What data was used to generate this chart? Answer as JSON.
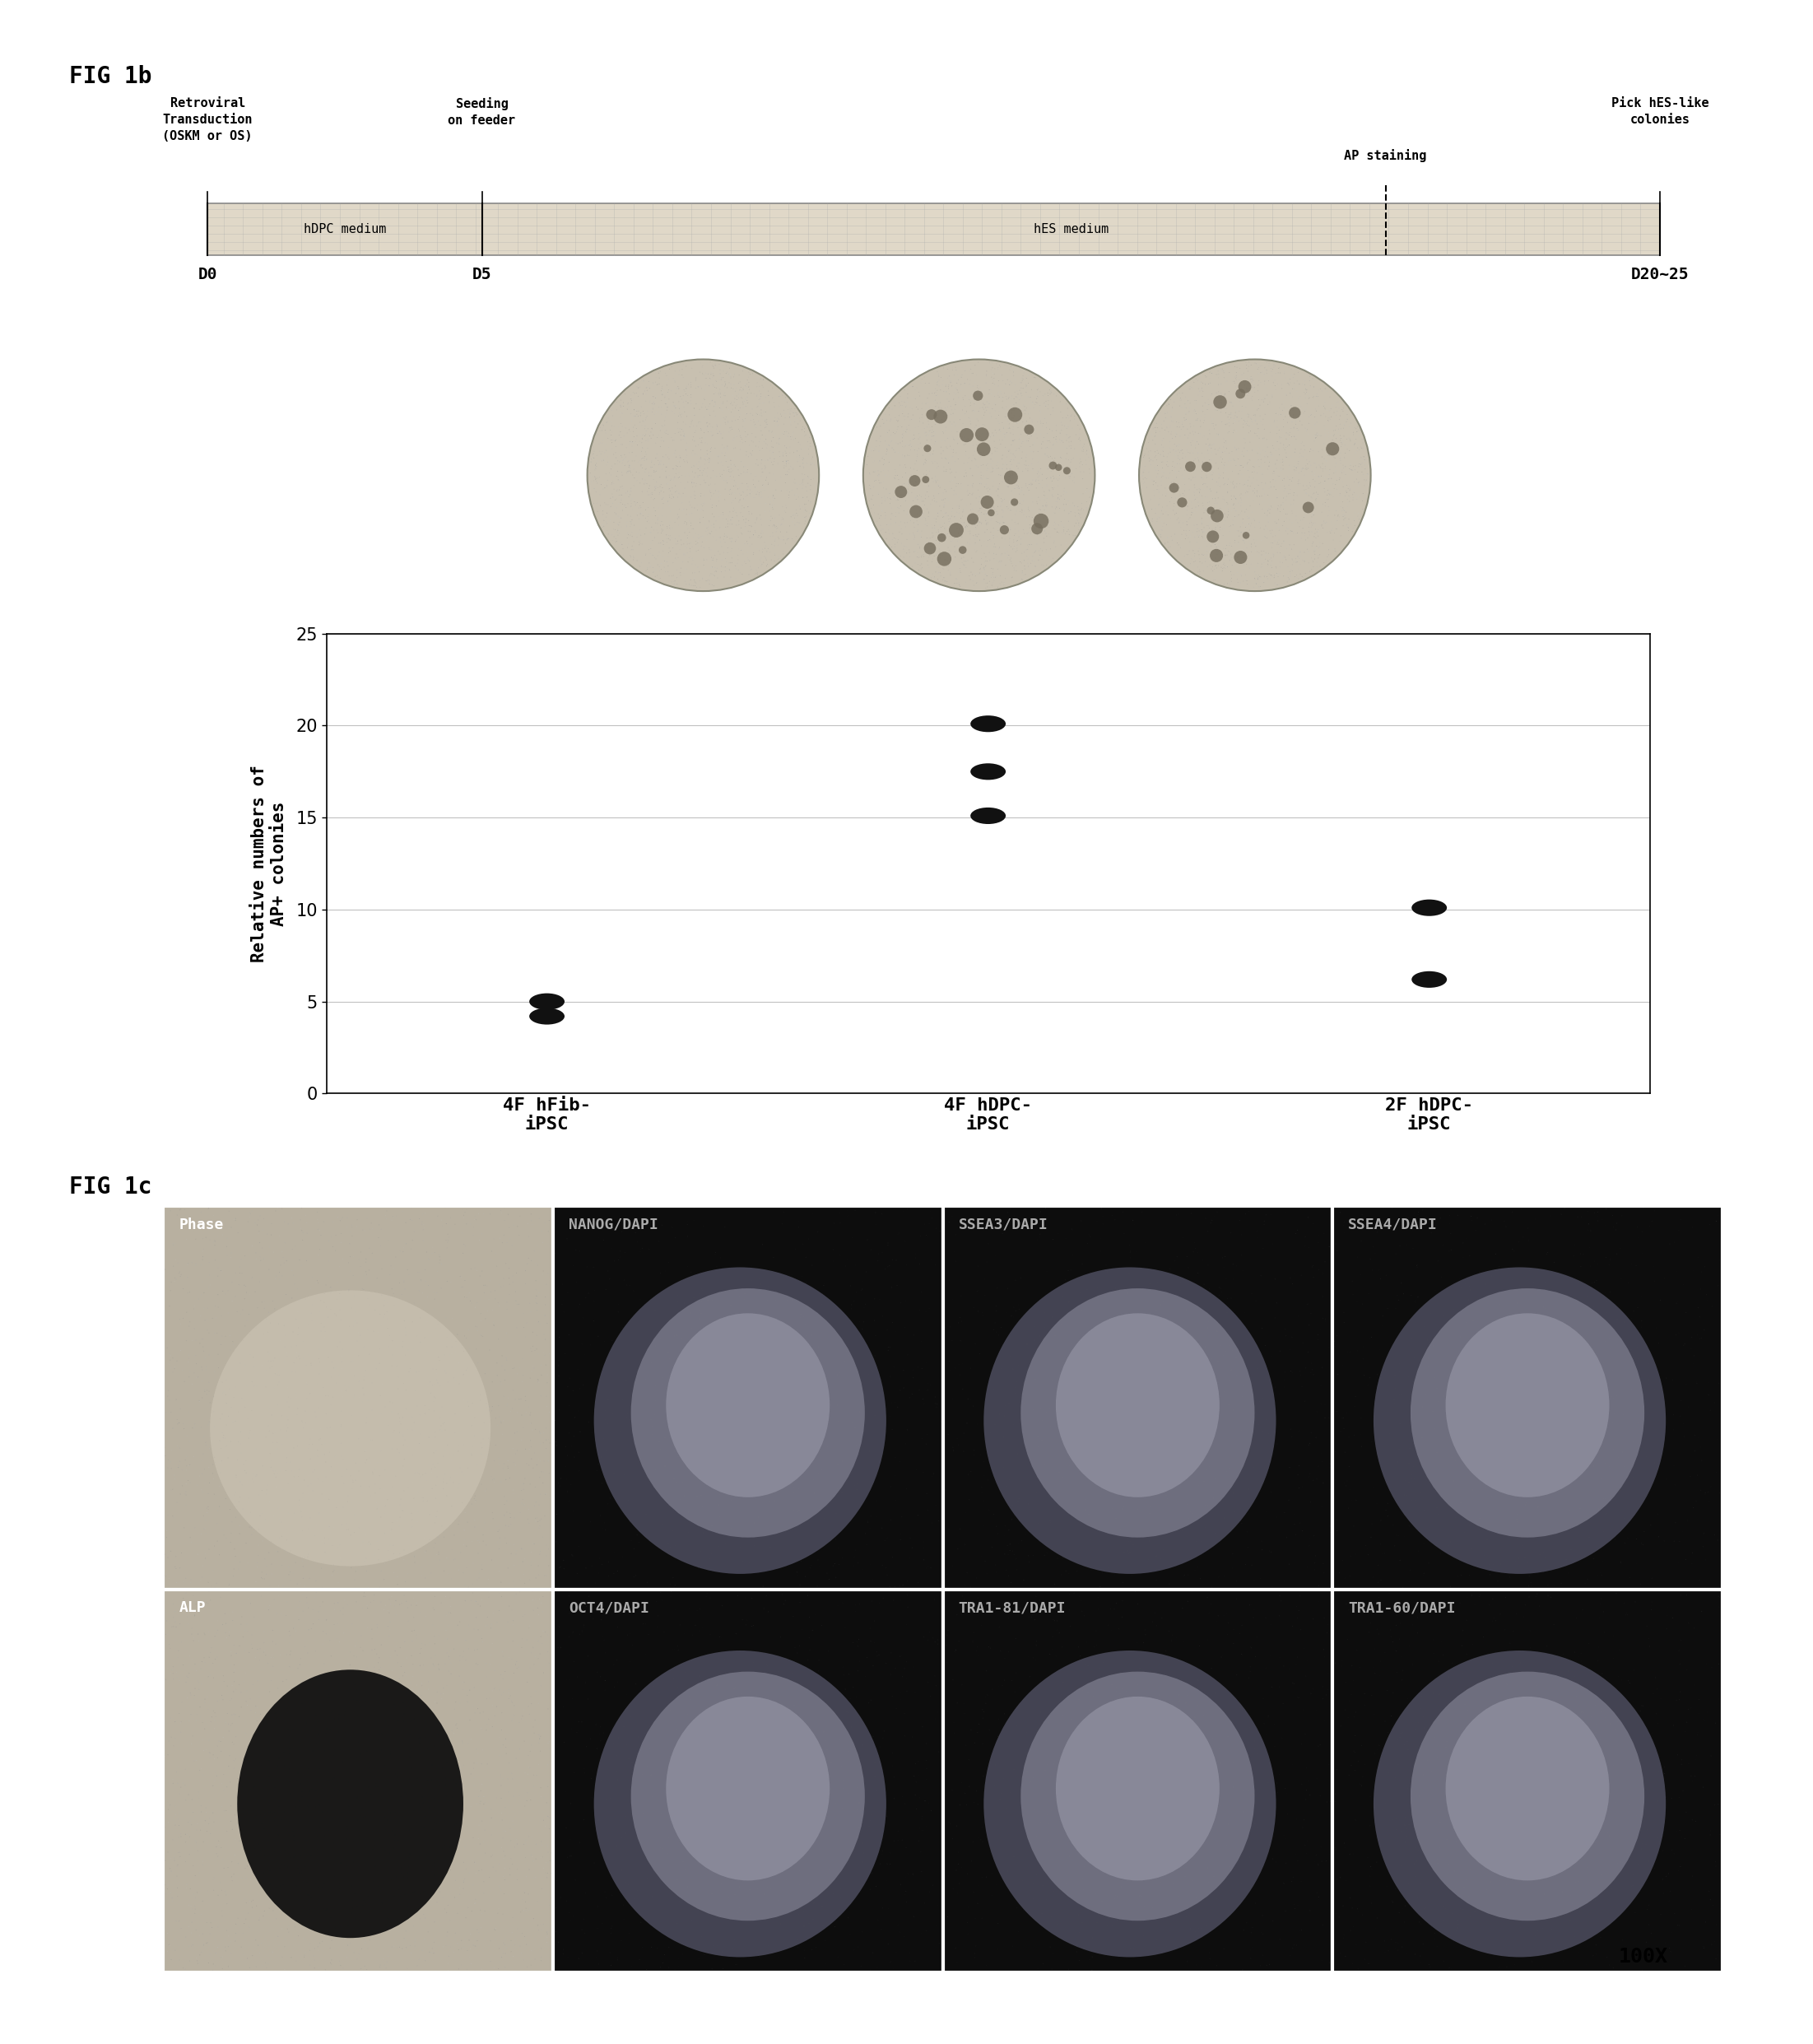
{
  "fig_label_1b": "FIG 1b",
  "fig_label_1c": "FIG 1c",
  "timeline_labels": {
    "retroviral": "Retroviral\nTransduction\n(OSKM or OS)",
    "seeding": "Seeding\non feeder",
    "ap_staining": "AP staining",
    "pick": "Pick hES-like\ncolonies"
  },
  "timeline_days": {
    "D0": "D0",
    "D5": "D5",
    "D20_25": "D20~25"
  },
  "medium_labels": {
    "hdpc": "hDPC medium",
    "hes": "hES medium"
  },
  "scatter_data": {
    "categories": [
      "4F hFib-\niPSC",
      "4F hDPC-\niPSC",
      "2F hDPC-\niPSC"
    ],
    "x_positions": [
      1,
      2,
      3
    ],
    "points": {
      "4F hFib-\niPSC": [
        5.0,
        4.2
      ],
      "4F hDPC-\niPSC": [
        20.1,
        17.5,
        15.1
      ],
      "2F hDPC-\niPSC": [
        10.1,
        6.2
      ]
    }
  },
  "scatter_ylim": [
    0,
    25
  ],
  "scatter_yticks": [
    0,
    5,
    10,
    15,
    20,
    25
  ],
  "scatter_ylabel_line1": "Relative numbers of",
  "scatter_ylabel_line2": "AP+ colonies",
  "grid_lines_y": [
    5,
    10,
    15,
    20,
    25
  ],
  "fig1c_labels_row1": [
    "Phase",
    "NANOG/DAPI",
    "SSEA3/DAPI",
    "SSEA4/DAPI"
  ],
  "fig1c_labels_row2": [
    "ALP",
    "OCT4/DAPI",
    "TRA1-81/DAPI",
    "TRA1-60/DAPI"
  ],
  "magnification": "100X",
  "bg_white": "#ffffff",
  "bg_light_gray": "#c8c0b8",
  "bg_dark": "#111111",
  "timeline_box_color": "#e0d8c8",
  "scatter_grid_color": "#999999",
  "dot_color": "#111111"
}
